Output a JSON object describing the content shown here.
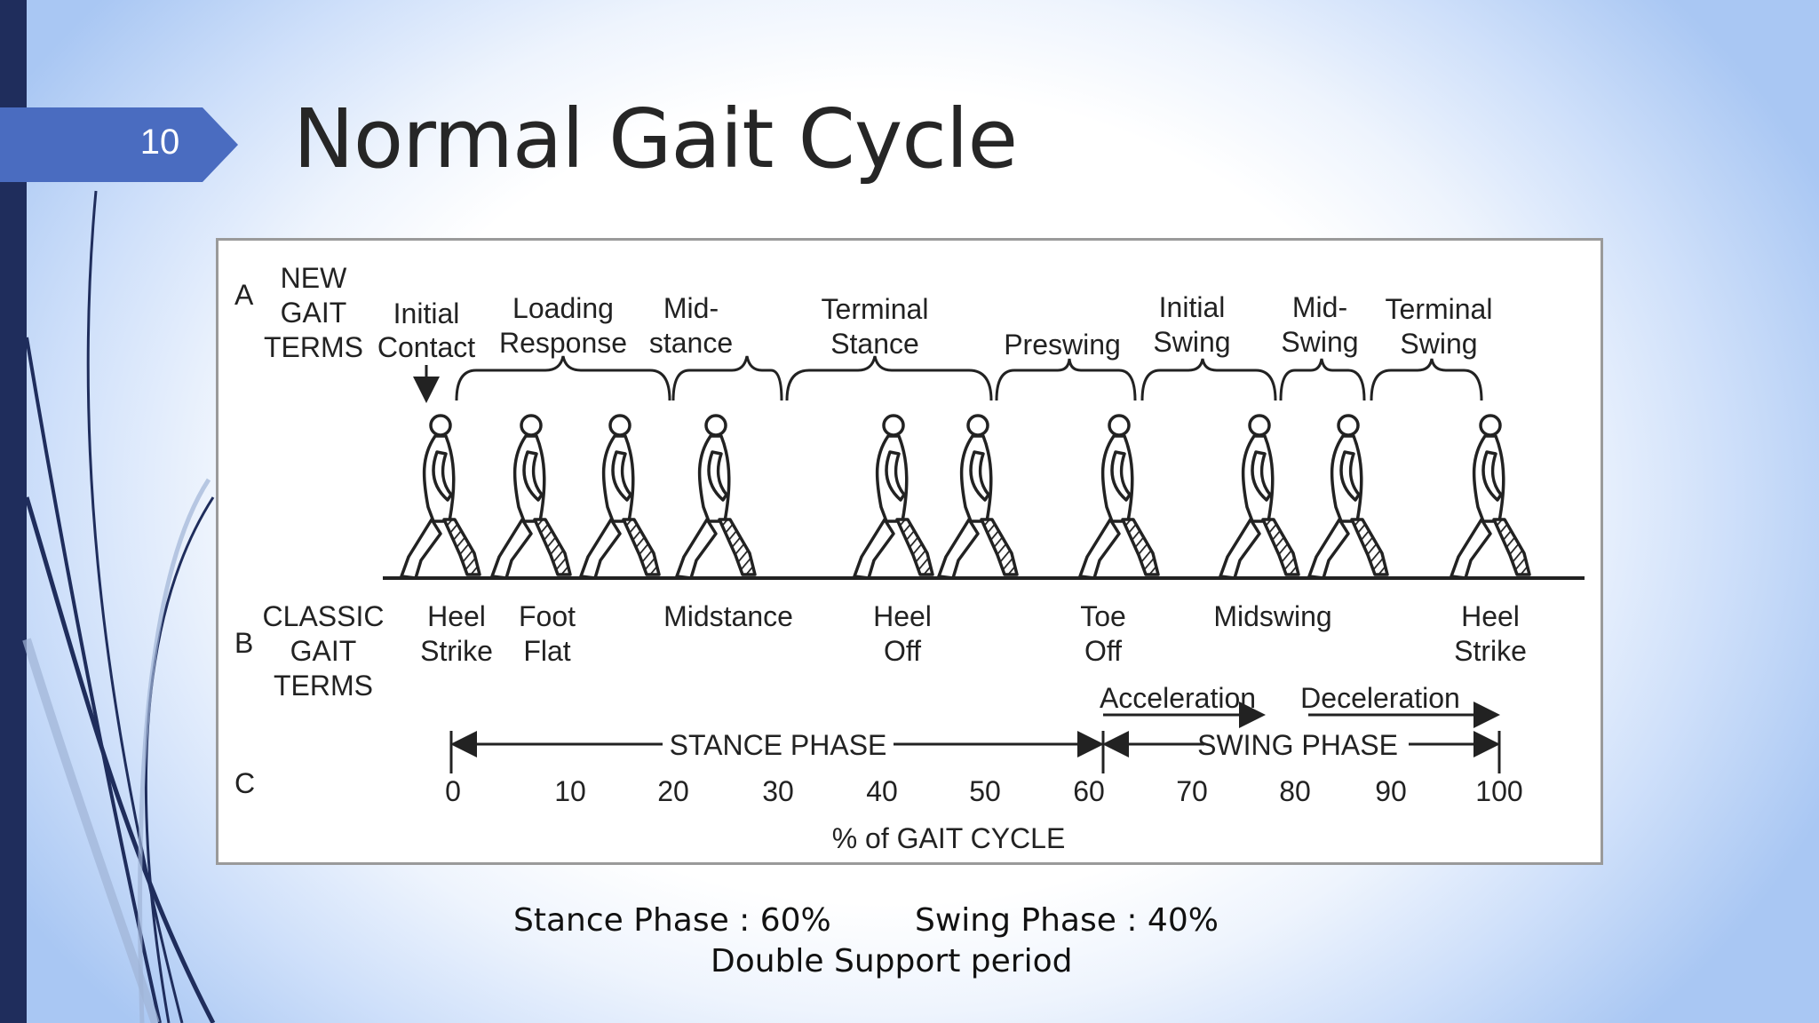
{
  "slide": {
    "number": "10",
    "title": "Normal Gait Cycle"
  },
  "diagram": {
    "row_labels": {
      "a": "A",
      "b": "B",
      "c": "C"
    },
    "new_terms_header": [
      "NEW",
      "GAIT",
      "TERMS"
    ],
    "classic_terms_header": [
      "CLASSIC",
      "GAIT",
      "TERMS"
    ],
    "new_terms": [
      [
        "Initial",
        "Contact"
      ],
      [
        "Loading",
        "Response"
      ],
      [
        "Mid-",
        "stance"
      ],
      [
        "Terminal",
        "Stance"
      ],
      [
        "Preswing"
      ],
      [
        "Initial",
        "Swing"
      ],
      [
        "Mid-",
        "Swing"
      ],
      [
        "Terminal",
        "Swing"
      ]
    ],
    "classic_terms": [
      [
        "Heel",
        "Strike"
      ],
      [
        "Foot",
        "Flat"
      ],
      [
        "Midstance"
      ],
      [
        "Heel",
        "Off"
      ],
      [
        "Toe",
        "Off"
      ],
      [
        "Midswing"
      ],
      [
        "Heel",
        "Strike"
      ]
    ],
    "acceleration": "Acceleration",
    "deceleration": "Deceleration",
    "stance_phase": "STANCE PHASE",
    "swing_phase": "SWING PHASE",
    "axis_ticks": [
      "0",
      "10",
      "20",
      "30",
      "40",
      "50",
      "60",
      "70",
      "80",
      "90",
      "100"
    ],
    "axis_label": "% of GAIT CYCLE"
  },
  "notes": {
    "stance": "Stance Phase : 60%",
    "swing": "Swing Phase : 40%",
    "double_support": "Double Support period"
  },
  "colors": {
    "accent": "#4a6cc0",
    "dark_bar": "#1f2d5c"
  }
}
